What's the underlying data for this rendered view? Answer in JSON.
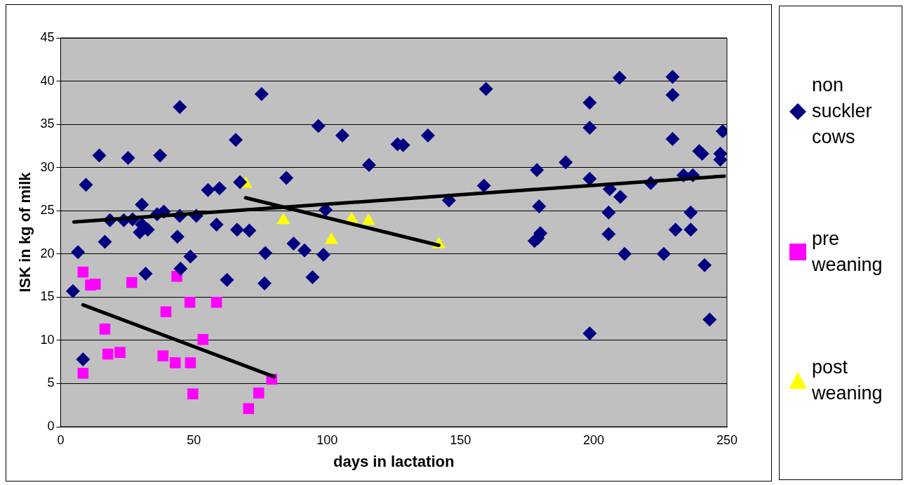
{
  "chart_data": {
    "type": "scatter",
    "xlabel": "days in lactation",
    "ylabel": "ISK in kg of milk",
    "xlim": [
      0,
      250
    ],
    "xticks": [
      0,
      50,
      100,
      150,
      200,
      250
    ],
    "ylim": [
      0,
      45
    ],
    "yticks": [
      0,
      5,
      10,
      15,
      20,
      25,
      30,
      35,
      40,
      45
    ],
    "grid": "y",
    "legend": "right",
    "series": [
      {
        "name": "non suckler cows",
        "color": "#000080",
        "marker": "diamond",
        "x": [
          4.6,
          6.5,
          8.4,
          9.5,
          14.5,
          16.6,
          18.5,
          23.7,
          25.3,
          27,
          29.7,
          30.5,
          30.5,
          31.9,
          32.7,
          36.2,
          37.3,
          38.7,
          43.8,
          45,
          44.7,
          44.7,
          48.7,
          50.9,
          55.3,
          59.6,
          58.5,
          62.4,
          65.7,
          66.2,
          67.3,
          70.8,
          75.4,
          76.5,
          76.8,
          84.7,
          87.4,
          91.5,
          94.5,
          96.7,
          99.4,
          98.6,
          105.7,
          115.7,
          126.4,
          128.5,
          137.8,
          145.7,
          159.6,
          158.8,
          178.7,
          179.5,
          177.8,
          179,
          180,
          189.5,
          198.5,
          198.5,
          198.5,
          198.5,
          209.7,
          205.6,
          205.6,
          206,
          210,
          211.6,
          221.4,
          226.3,
          229.6,
          229.6,
          229.6,
          230.7,
          233.7,
          237.2,
          236.4,
          236.4,
          239.6,
          240.7,
          241.6,
          243.5,
          247.5,
          247.5,
          248.4
        ],
        "values": [
          15.7,
          20.2,
          7.8,
          28,
          31.4,
          21.4,
          23.9,
          23.9,
          31.1,
          24,
          22.5,
          23.4,
          25.7,
          17.7,
          22.8,
          24.6,
          31.4,
          24.9,
          22,
          18.3,
          37,
          24.4,
          19.7,
          24.4,
          27.4,
          27.6,
          23.4,
          17,
          33.2,
          22.8,
          28.3,
          22.7,
          38.5,
          16.6,
          20.1,
          28.8,
          21.2,
          20.4,
          17.3,
          34.8,
          25.1,
          19.9,
          33.7,
          30.3,
          32.7,
          32.6,
          33.7,
          26.2,
          39.1,
          27.9,
          29.7,
          25.5,
          21.5,
          21.8,
          22.4,
          30.6,
          37.5,
          34.6,
          28.7,
          10.8,
          40.4,
          24.8,
          22.3,
          27.5,
          26.6,
          20,
          28.2,
          20,
          40.5,
          38.4,
          33.3,
          22.8,
          29.1,
          29.1,
          24.8,
          22.8,
          31.9,
          31.6,
          18.7,
          12.4,
          30.9,
          31.6,
          34.2
        ]
      },
      {
        "name": "pre weaning",
        "color": "#ff00ff",
        "marker": "square",
        "x": [
          8.4,
          8.4,
          11.2,
          13,
          16.6,
          17.7,
          22.3,
          26.7,
          39.5,
          38.4,
          43.6,
          43,
          48.7,
          48.5,
          58.5,
          53.4,
          49.6,
          70.5,
          74.3,
          79.2
        ],
        "values": [
          17.9,
          6.2,
          16.4,
          16.5,
          11.3,
          8.4,
          8.6,
          16.7,
          13.3,
          8.2,
          17.4,
          7.4,
          7.4,
          14.4,
          14.4,
          10.1,
          3.8,
          2.1,
          3.9,
          5.5
        ]
      },
      {
        "name": "post weaning",
        "color": "#ffff00",
        "marker": "triangle",
        "x": [
          69.4,
          83.6,
          101.6,
          109.2,
          115.5,
          141.9
        ],
        "values": [
          28.1,
          23.9,
          21.6,
          24,
          23.8,
          21.1
        ]
      },
      {
        "type": "line",
        "color": "#000000",
        "marker": "none",
        "x": [
          5,
          249
        ],
        "values": [
          23.7,
          29
        ]
      },
      {
        "type": "line",
        "color": "#000000",
        "marker": "none",
        "x": [
          8.4,
          80
        ],
        "values": [
          14.1,
          5.8
        ]
      },
      {
        "type": "line",
        "color": "#000000",
        "marker": "none",
        "x": [
          69.4,
          141.9
        ],
        "values": [
          26.5,
          21
        ]
      }
    ]
  }
}
